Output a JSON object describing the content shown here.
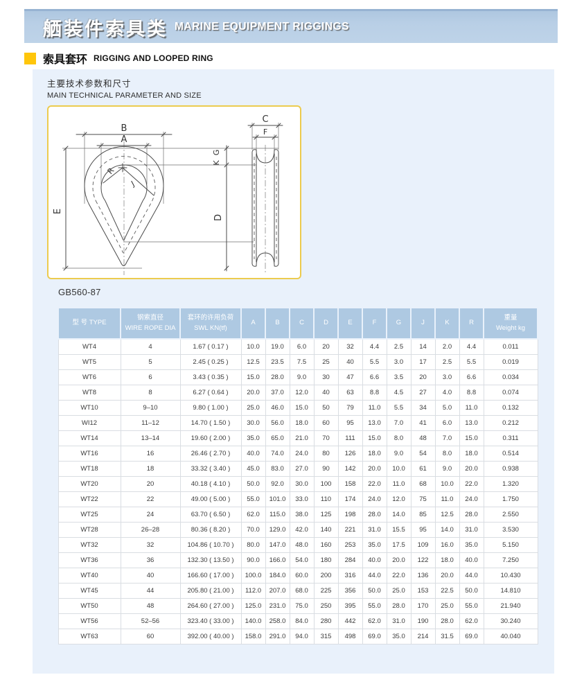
{
  "banner": {
    "title_zh": "舾装件索具类",
    "title_en": "MARINE EQUIPMENT RIGGINGS"
  },
  "section": {
    "title_zh": "索具套环",
    "title_en": "RIGGING AND LOOPED RING"
  },
  "intro": {
    "line_zh": "主要技术参数和尺寸",
    "line_en": "MAIN TECHNICAL PARAMETER AND SIZE"
  },
  "standard_label": "GB560-87",
  "diagram": {
    "labels": {
      "B": "B",
      "A": "A",
      "E": "E",
      "R": "R",
      "J": "J",
      "C": "C",
      "F": "F",
      "K": "K",
      "G": "G",
      "D": "D"
    }
  },
  "colors": {
    "banner_blue": "#b9cfe6",
    "panel_blue": "#e9f1fb",
    "header_blue": "#aec9e2",
    "bullet_yellow": "#ffc60b",
    "diagram_border": "#eccb4e"
  },
  "table": {
    "headers": [
      [
        "型 号 TYPE"
      ],
      [
        "钢索直径",
        "WIRE ROPE DIA"
      ],
      [
        "套环的许用负荷",
        "SWL KN(tf)"
      ],
      [
        "A"
      ],
      [
        "B"
      ],
      [
        "C"
      ],
      [
        "D"
      ],
      [
        "E"
      ],
      [
        "F"
      ],
      [
        "G"
      ],
      [
        "J"
      ],
      [
        "K"
      ],
      [
        "R"
      ],
      [
        "重量",
        "Weight kg"
      ]
    ],
    "rows": [
      [
        "WT4",
        "4",
        "1.67 ( 0.17 )",
        "10.0",
        "19.0",
        "6.0",
        "20",
        "32",
        "4.4",
        "2.5",
        "14",
        "2.0",
        "4.4",
        "0.011"
      ],
      [
        "WT5",
        "5",
        "2.45 ( 0.25 )",
        "12.5",
        "23.5",
        "7.5",
        "25",
        "40",
        "5.5",
        "3.0",
        "17",
        "2.5",
        "5.5",
        "0.019"
      ],
      [
        "WT6",
        "6",
        "3.43 ( 0.35 )",
        "15.0",
        "28.0",
        "9.0",
        "30",
        "47",
        "6.6",
        "3.5",
        "20",
        "3.0",
        "6.6",
        "0.034"
      ],
      [
        "WT8",
        "8",
        "6.27 ( 0.64 )",
        "20.0",
        "37.0",
        "12.0",
        "40",
        "63",
        "8.8",
        "4.5",
        "27",
        "4.0",
        "8.8",
        "0.074"
      ],
      [
        "WT10",
        "9–10",
        "9.80 ( 1.00 )",
        "25.0",
        "46.0",
        "15.0",
        "50",
        "79",
        "11.0",
        "5.5",
        "34",
        "5.0",
        "11.0",
        "0.132"
      ],
      [
        "WI12",
        "11–12",
        "14.70 ( 1.50 )",
        "30.0",
        "56.0",
        "18.0",
        "60",
        "95",
        "13.0",
        "7.0",
        "41",
        "6.0",
        "13.0",
        "0.212"
      ],
      [
        "WT14",
        "13–14",
        "19.60 ( 2.00 )",
        "35.0",
        "65.0",
        "21.0",
        "70",
        "111",
        "15.0",
        "8.0",
        "48",
        "7.0",
        "15.0",
        "0.311"
      ],
      [
        "WT16",
        "16",
        "26.46 ( 2.70 )",
        "40.0",
        "74.0",
        "24.0",
        "80",
        "126",
        "18.0",
        "9.0",
        "54",
        "8.0",
        "18.0",
        "0.514"
      ],
      [
        "WT18",
        "18",
        "33.32 ( 3.40 )",
        "45.0",
        "83.0",
        "27.0",
        "90",
        "142",
        "20.0",
        "10.0",
        "61",
        "9.0",
        "20.0",
        "0.938"
      ],
      [
        "WT20",
        "20",
        "40.18 ( 4.10 )",
        "50.0",
        "92.0",
        "30.0",
        "100",
        "158",
        "22.0",
        "11.0",
        "68",
        "10.0",
        "22.0",
        "1.320"
      ],
      [
        "WT22",
        "22",
        "49.00 ( 5.00 )",
        "55.0",
        "101.0",
        "33.0",
        "110",
        "174",
        "24.0",
        "12.0",
        "75",
        "11.0",
        "24.0",
        "1.750"
      ],
      [
        "WT25",
        "24",
        "63.70 ( 6.50 )",
        "62.0",
        "115.0",
        "38.0",
        "125",
        "198",
        "28.0",
        "14.0",
        "85",
        "12.5",
        "28.0",
        "2.550"
      ],
      [
        "WT28",
        "26–28",
        "80.36 ( 8.20 )",
        "70.0",
        "129.0",
        "42.0",
        "140",
        "221",
        "31.0",
        "15.5",
        "95",
        "14.0",
        "31.0",
        "3.530"
      ],
      [
        "WT32",
        "32",
        "104.86 ( 10.70 )",
        "80.0",
        "147.0",
        "48.0",
        "160",
        "253",
        "35.0",
        "17.5",
        "109",
        "16.0",
        "35.0",
        "5.150"
      ],
      [
        "WT36",
        "36",
        "132.30 ( 13.50 )",
        "90.0",
        "166.0",
        "54.0",
        "180",
        "284",
        "40.0",
        "20.0",
        "122",
        "18.0",
        "40.0",
        "7.250"
      ],
      [
        "WT40",
        "40",
        "166.60 ( 17.00 )",
        "100.0",
        "184.0",
        "60.0",
        "200",
        "316",
        "44.0",
        "22.0",
        "136",
        "20.0",
        "44.0",
        "10.430"
      ],
      [
        "WT45",
        "44",
        "205.80 ( 21.00 )",
        "112.0",
        "207.0",
        "68.0",
        "225",
        "356",
        "50.0",
        "25.0",
        "153",
        "22.5",
        "50.0",
        "14.810"
      ],
      [
        "WT50",
        "48",
        "264.60 ( 27.00 )",
        "125.0",
        "231.0",
        "75.0",
        "250",
        "395",
        "55.0",
        "28.0",
        "170",
        "25.0",
        "55.0",
        "21.940"
      ],
      [
        "WT56",
        "52–56",
        "323.40 ( 33.00 )",
        "140.0",
        "258.0",
        "84.0",
        "280",
        "442",
        "62.0",
        "31.0",
        "190",
        "28.0",
        "62.0",
        "30.240"
      ],
      [
        "WT63",
        "60",
        "392.00 ( 40.00 )",
        "158.0",
        "291.0",
        "94.0",
        "315",
        "498",
        "69.0",
        "35.0",
        "214",
        "31.5",
        "69.0",
        "40.040"
      ]
    ]
  }
}
